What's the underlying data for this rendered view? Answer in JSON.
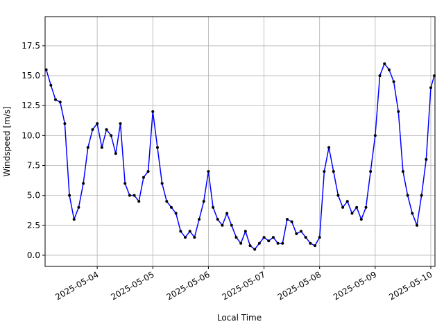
{
  "chart_data": {
    "type": "line",
    "xlabel": "Local Time",
    "ylabel": "Windspeed [m/s]",
    "x": [
      "2025-05-03T02:00",
      "2025-05-03T04:00",
      "2025-05-03T06:00",
      "2025-05-03T08:00",
      "2025-05-03T10:00",
      "2025-05-03T12:00",
      "2025-05-03T14:00",
      "2025-05-03T16:00",
      "2025-05-03T18:00",
      "2025-05-03T20:00",
      "2025-05-03T22:00",
      "2025-05-04T00:00",
      "2025-05-04T02:00",
      "2025-05-04T04:00",
      "2025-05-04T06:00",
      "2025-05-04T08:00",
      "2025-05-04T10:00",
      "2025-05-04T12:00",
      "2025-05-04T14:00",
      "2025-05-04T16:00",
      "2025-05-04T18:00",
      "2025-05-04T20:00",
      "2025-05-04T22:00",
      "2025-05-05T00:00",
      "2025-05-05T02:00",
      "2025-05-05T04:00",
      "2025-05-05T06:00",
      "2025-05-05T08:00",
      "2025-05-05T10:00",
      "2025-05-05T12:00",
      "2025-05-05T14:00",
      "2025-05-05T16:00",
      "2025-05-05T18:00",
      "2025-05-05T20:00",
      "2025-05-05T22:00",
      "2025-05-06T00:00",
      "2025-05-06T02:00",
      "2025-05-06T04:00",
      "2025-05-06T06:00",
      "2025-05-06T08:00",
      "2025-05-06T10:00",
      "2025-05-06T12:00",
      "2025-05-06T14:00",
      "2025-05-06T16:00",
      "2025-05-06T18:00",
      "2025-05-06T20:00",
      "2025-05-06T22:00",
      "2025-05-07T00:00",
      "2025-05-07T02:00",
      "2025-05-07T04:00",
      "2025-05-07T06:00",
      "2025-05-07T08:00",
      "2025-05-07T10:00",
      "2025-05-07T12:00",
      "2025-05-07T14:00",
      "2025-05-07T16:00",
      "2025-05-07T18:00",
      "2025-05-07T20:00",
      "2025-05-07T22:00",
      "2025-05-08T00:00",
      "2025-05-08T02:00",
      "2025-05-08T04:00",
      "2025-05-08T06:00",
      "2025-05-08T08:00",
      "2025-05-08T10:00",
      "2025-05-08T12:00",
      "2025-05-08T14:00",
      "2025-05-08T16:00",
      "2025-05-08T18:00",
      "2025-05-08T20:00",
      "2025-05-08T22:00",
      "2025-05-09T00:00",
      "2025-05-09T02:00",
      "2025-05-09T04:00",
      "2025-05-09T06:00",
      "2025-05-09T08:00",
      "2025-05-09T10:00",
      "2025-05-09T12:00",
      "2025-05-09T14:00",
      "2025-05-09T16:00",
      "2025-05-09T18:00",
      "2025-05-09T20:00",
      "2025-05-09T22:00",
      "2025-05-10T00:00",
      "2025-05-10T01:30"
    ],
    "values": [
      15.5,
      14.2,
      13,
      12.8,
      11,
      5,
      3,
      4,
      6,
      9,
      10.5,
      11,
      9,
      10.5,
      10,
      8.5,
      11,
      6,
      5,
      5,
      4.5,
      6.5,
      7,
      12,
      9,
      6,
      4.5,
      4,
      3.5,
      2,
      1.5,
      2,
      1.5,
      3,
      4.5,
      7,
      4,
      3,
      2.5,
      3.5,
      2.5,
      1.5,
      1,
      2,
      0.8,
      0.5,
      1,
      1.5,
      1.2,
      1.5,
      1,
      1,
      3,
      2.8,
      1.8,
      2,
      1.5,
      1,
      0.8,
      1.5,
      7,
      9,
      7,
      5,
      4,
      4.5,
      3.5,
      4,
      3,
      4,
      7,
      10,
      15,
      16,
      15.5,
      14.5,
      12,
      7,
      5,
      3.5,
      2.5,
      5,
      8,
      14,
      15
    ],
    "color": "#0000ff",
    "marker_color": "#000000",
    "xlim": [
      "2025-05-03T01:30",
      "2025-05-10T01:48"
    ],
    "xticks": [
      "2025-05-04",
      "2025-05-05",
      "2025-05-06",
      "2025-05-07",
      "2025-05-08",
      "2025-05-09",
      "2025-05-10"
    ],
    "ylim": [
      -0.93,
      19.93
    ],
    "yticks": [
      {
        "value": 0,
        "label": "0.0"
      },
      2.5,
      {
        "value": 5,
        "label": "5.0"
      },
      7.5,
      {
        "value": 10,
        "label": "10.0"
      },
      12.5,
      {
        "value": 15,
        "label": "15.0"
      },
      17.5
    ],
    "grid": true
  }
}
